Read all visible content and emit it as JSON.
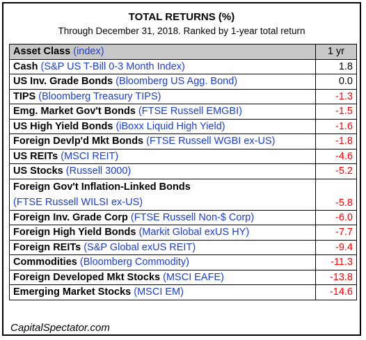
{
  "title": "TOTAL RETURNS (%)",
  "subtitle": "Through December 31, 2018. Ranked by 1-year total return",
  "header": {
    "asset_class": "Asset Class",
    "index": "(index)",
    "period": "1 yr"
  },
  "rows": [
    {
      "name": "Cash",
      "index": "(S&P US T-Bill 0-3 Month Index)",
      "value": "1.8"
    },
    {
      "name": "US Inv. Grade Bonds",
      "index": "(Bloomberg US Agg. Bond)",
      "value": "0.0"
    },
    {
      "name": "TIPS",
      "index": "(Bloomberg Treasury TIPS)",
      "value": "-1.3"
    },
    {
      "name": "Emg. Market Gov't Bonds",
      "index": "(FTSE Russell EMGBI)",
      "value": "-1.5"
    },
    {
      "name": "US High Yield Bonds",
      "index": "(iBoxx Liquid High Yield)",
      "value": "-1.6"
    },
    {
      "name": "Foreign Devlp'd Mkt Bonds",
      "index": "(FTSE Russell WGBI ex-US)",
      "value": "-1.8"
    },
    {
      "name": "US REITs",
      "index": "(MSCI REIT)",
      "value": "-4.6"
    },
    {
      "name": "US Stocks",
      "index": "(Russell 3000)",
      "value": "-5.2"
    },
    {
      "name": "Foreign Gov't Inflation-Linked Bonds",
      "index": "(FTSE Russell WILSI ex-US)",
      "value": "-5.8"
    },
    {
      "name": "Foreign Inv. Grade Corp",
      "index": "(FTSE Russell Non-$ Corp)",
      "value": "-6.0"
    },
    {
      "name": "Foreign High Yield Bonds",
      "index": "(Markit Global exUS HY)",
      "value": "-7.7"
    },
    {
      "name": "Foreign REITs",
      "index": "(S&P Global exUS REIT)",
      "value": "-9.4"
    },
    {
      "name": "Commodities",
      "index": "(Bloomberg Commodity)",
      "value": "-11.3"
    },
    {
      "name": "Foreign Developed Mkt Stocks",
      "index": "(MSCI EAFE)",
      "value": "-13.8"
    },
    {
      "name": "Emerging Market Stocks",
      "index": "(MSCI EM)",
      "value": "-14.6"
    }
  ],
  "footer": "CapitalSpectator.com",
  "colors": {
    "index_text": "#1c3ecf",
    "negative": "#ff0000",
    "header_bg": "#c8c8c8"
  }
}
